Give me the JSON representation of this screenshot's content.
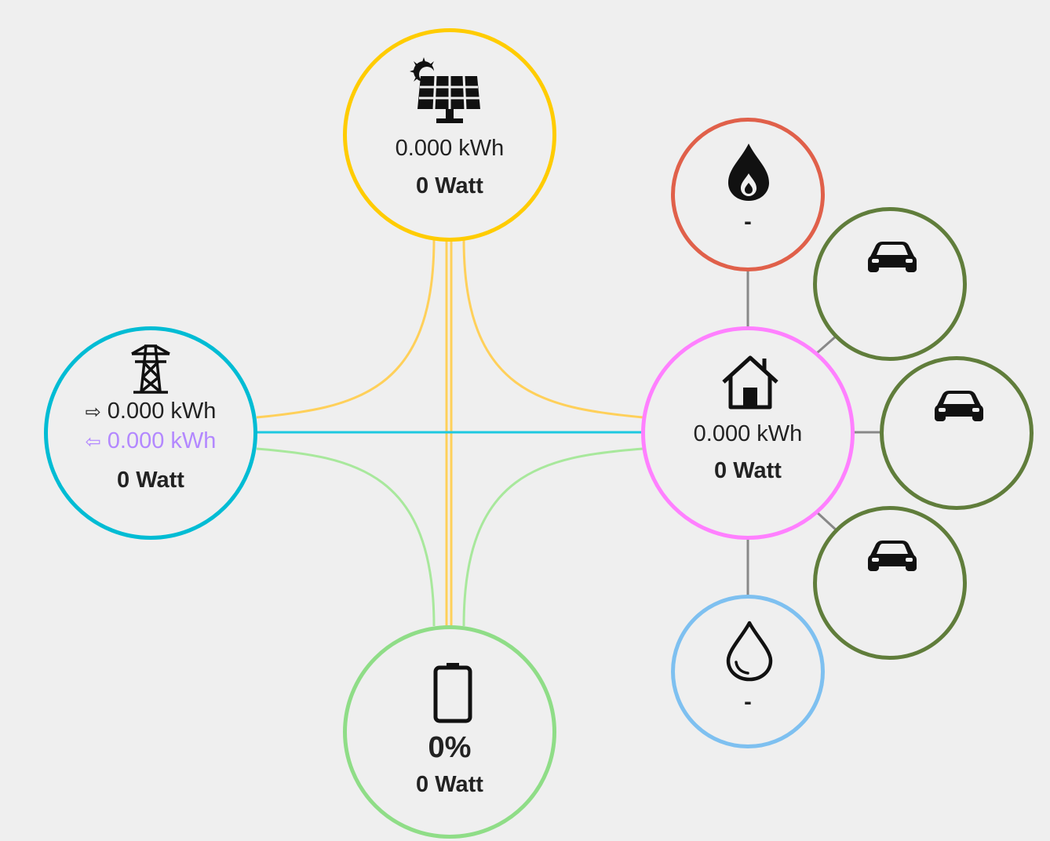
{
  "colors": {
    "solar": "#ffcc00",
    "grid": "#00bcd4",
    "grid_return": "#b388ff",
    "home": "#ff80ff",
    "battery": "#8fdd87",
    "gas": "#e0604a",
    "ev": "#607d3b",
    "water": "#7ec0f0",
    "link": "#888888"
  },
  "solar": {
    "icon": "solar-panel-icon",
    "energy": "0.000 kWh",
    "power": "0 Watt"
  },
  "grid": {
    "icon": "transmission-tower-icon",
    "import_arrow": "⇨",
    "import_energy": "0.000 kWh",
    "export_arrow": "⇦",
    "export_energy": "0.000 kWh",
    "power": "0 Watt"
  },
  "home": {
    "icon": "home-icon",
    "energy": "0.000 kWh",
    "power": "0 Watt"
  },
  "battery": {
    "icon": "battery-icon",
    "level": "0%",
    "power": "0 Watt"
  },
  "gas": {
    "icon": "fire-icon",
    "value": "-"
  },
  "water": {
    "icon": "water-drop-icon",
    "value": "-"
  },
  "evs": [
    {
      "icon": "car-icon"
    },
    {
      "icon": "car-icon"
    },
    {
      "icon": "car-icon"
    }
  ]
}
